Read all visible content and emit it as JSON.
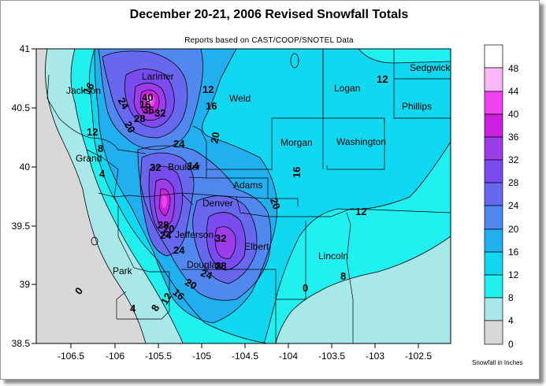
{
  "title": "December 20-21, 2006 Revised Snowfall Totals",
  "subtitle": "Reports based on CAST/COOP/SNOTEL Data",
  "axes": {
    "y_ticks": [
      "41",
      "40.5",
      "40",
      "39.5",
      "39",
      "38.5"
    ],
    "x_ticks": [
      "-106.5",
      "-106",
      "-105.5",
      "-105",
      "-104.5",
      "-104",
      "-103.5",
      "-103",
      "-102.5"
    ]
  },
  "counties": {
    "jackson": "Jackson",
    "larimer": "Larimer",
    "weld": "Weld",
    "logan": "Logan",
    "sedgwick": "Sedgwick",
    "phillips": "Phillips",
    "morgan": "Morgan",
    "washington": "Washington",
    "grand": "Grand",
    "boulder": "Boulder",
    "adams": "Adams",
    "denver": "Denver",
    "jefferson": "Jefferson",
    "elbert": "Elbert",
    "lincoln": "Lincoln",
    "douglas": "Douglas",
    "park": "Park"
  },
  "contour_labels": {
    "l40": "40",
    "l36": "36",
    "l32a": "32",
    "l28a": "28",
    "l24a": "24",
    "l20a": "20",
    "l16a": "16",
    "l12a": "12",
    "l8a": "8",
    "l4a": "4",
    "l12b": "12",
    "l16b": "16",
    "l20b": "20",
    "l24b": "24",
    "l32b": "32",
    "l14": "14",
    "l20c": "20",
    "l16c": "16",
    "l12c": "12",
    "l12d": "12",
    "l32c": "32",
    "l28b": "28",
    "l24c": "24",
    "l24d": "24",
    "l20d": "20",
    "l16d": "16",
    "l12e": "12",
    "l8b": "8",
    "l4b": "4",
    "l0a": "0",
    "l0b": "0",
    "l8c": "8",
    "l16e": "16",
    "l28c": "28",
    "l24e": "24",
    "l20e": "20"
  },
  "legend": {
    "labels": [
      "48",
      "44",
      "40",
      "36",
      "32",
      "28",
      "24",
      "20",
      "16",
      "12",
      "8",
      "4",
      "0"
    ],
    "colors": {
      "band_0_4": "#d8d8d8",
      "band_4_8": "#a8e8e8",
      "band_8_12": "#20f0f0",
      "band_12_16": "#10d8f0",
      "band_16_20": "#20b0f0",
      "band_20_24": "#5088f0",
      "band_24_28": "#6868ee",
      "band_28_32": "#7a4cf0",
      "band_32_36": "#9e3cec",
      "band_36_40": "#cc20e0",
      "band_40_44": "#f040f0",
      "band_44_48": "#f8b8f8",
      "band_48_plus": "#ffffff"
    },
    "units": "Snowfall in Inches"
  }
}
